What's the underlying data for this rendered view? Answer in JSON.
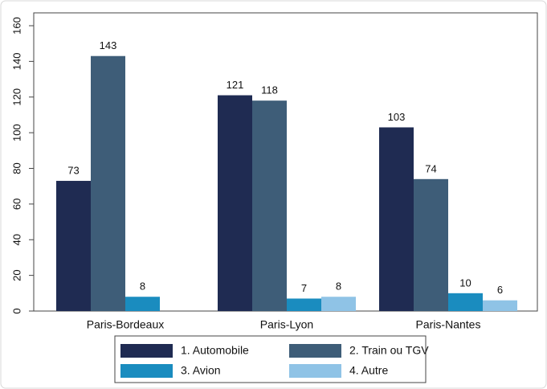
{
  "chart_data": {
    "type": "bar",
    "categories": [
      "Paris-Bordeaux",
      "Paris-Lyon",
      "Paris-Nantes"
    ],
    "series": [
      {
        "name": "1. Automobile",
        "color": "#1f2b52",
        "values": [
          73,
          121,
          103
        ]
      },
      {
        "name": "2. Train ou TGV",
        "color": "#3e5d78",
        "values": [
          143,
          118,
          74
        ]
      },
      {
        "name": "3. Avion",
        "color": "#1a8cbf",
        "values": [
          8,
          7,
          10
        ]
      },
      {
        "name": "4. Autre",
        "color": "#8fc3e6",
        "values": [
          null,
          8,
          6
        ]
      }
    ],
    "ylim": [
      0,
      160
    ],
    "yticks": [
      0,
      20,
      40,
      60,
      80,
      100,
      120,
      140,
      160
    ],
    "legend": "bottom"
  }
}
